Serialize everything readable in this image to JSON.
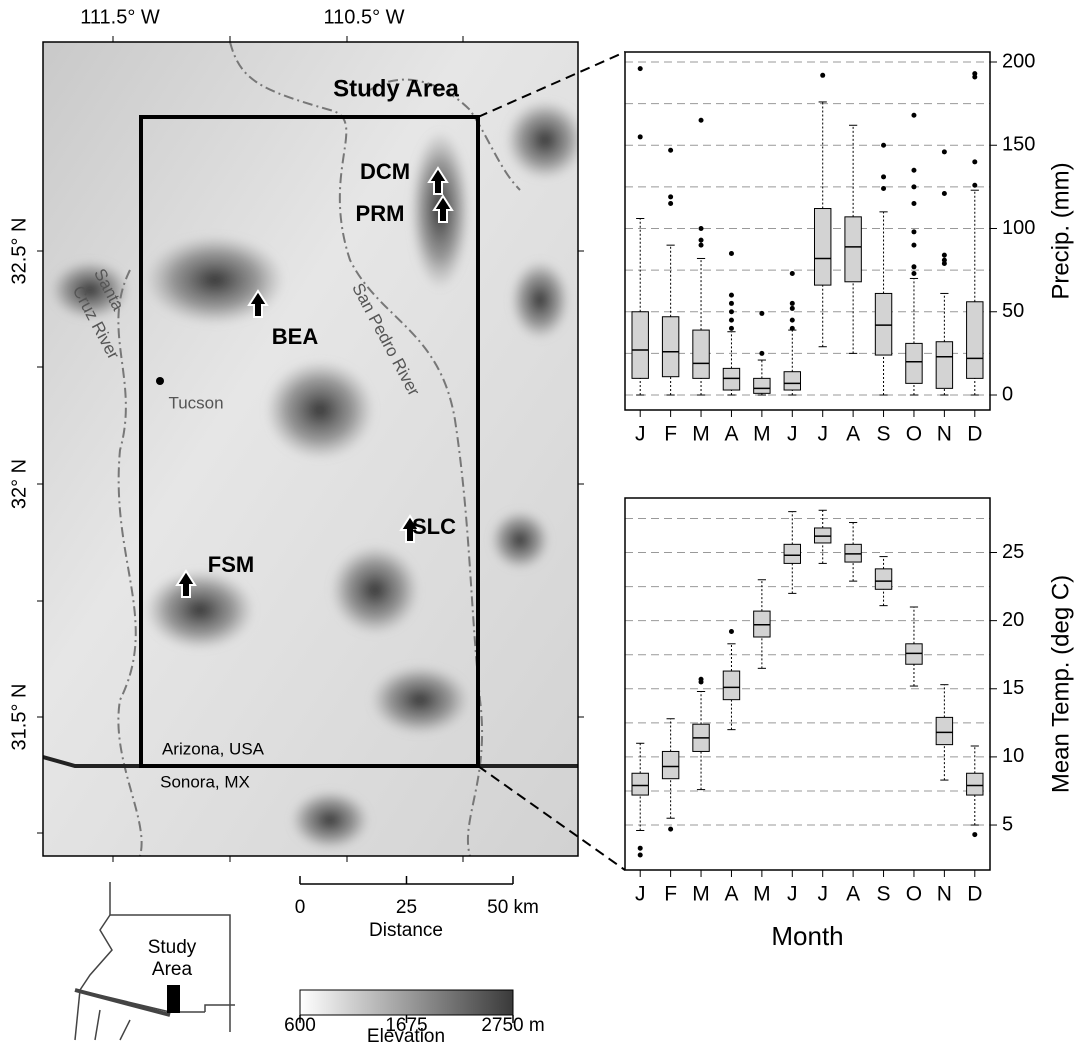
{
  "map": {
    "lon_labels": [
      "111.5° W",
      "110.5° W"
    ],
    "lat_labels": [
      "32.5° N",
      "32° N",
      "31.5° N"
    ],
    "study_area": "Study Area",
    "sites": [
      "DCM",
      "PRM",
      "BEA",
      "FSM",
      "SLC"
    ],
    "city": "Tucson",
    "rivers": [
      [
        "Santa",
        "Cruz River"
      ],
      [
        "San Pedro River"
      ]
    ],
    "countries": [
      "Arizona, USA",
      "Sonora, MX"
    ],
    "distance": {
      "ticks": [
        0,
        25,
        {
          "value": 50,
          "label": "50 km"
        }
      ],
      "title": "Distance"
    },
    "elevation": {
      "ticks": [
        600,
        1675,
        {
          "value": 2750,
          "label": "2750 m"
        }
      ],
      "title": "Elevation"
    },
    "inset_label": [
      "Study",
      "Area"
    ]
  },
  "chart_data": [
    {
      "type": "box",
      "y_label": "Precip. (mm)",
      "categories": [
        "J",
        "F",
        "M",
        "A",
        "M",
        "J",
        "J",
        "A",
        "S",
        "O",
        "N",
        "D"
      ],
      "whisker_low": [
        0,
        0,
        0,
        0,
        0,
        0,
        29,
        25,
        0,
        0,
        0,
        0
      ],
      "q1": [
        10,
        11,
        10,
        3,
        1,
        3,
        66,
        68,
        24,
        7,
        4,
        10
      ],
      "median": [
        27,
        26,
        19,
        10,
        4,
        7,
        82,
        89,
        42,
        20,
        23,
        22
      ],
      "q3": [
        50,
        47,
        39,
        16,
        10,
        14,
        112,
        107,
        61,
        31,
        32,
        56
      ],
      "whisker_high": [
        106,
        90,
        82,
        38,
        21,
        39,
        176,
        162,
        110,
        70,
        61,
        123
      ],
      "outliers": [
        [
          196,
          155
        ],
        [
          147,
          119,
          115
        ],
        [
          165,
          100,
          93,
          90
        ],
        [
          85,
          60,
          55,
          50,
          45,
          40
        ],
        [
          49,
          25
        ],
        [
          73,
          55,
          52,
          45,
          40
        ],
        [
          192
        ],
        [],
        [
          150,
          131,
          124
        ],
        [
          168,
          135,
          125,
          115,
          98,
          90,
          77,
          73
        ],
        [
          146,
          121,
          84,
          81,
          79
        ],
        [
          193,
          191,
          140,
          126
        ]
      ],
      "ylim": [
        -9,
        206
      ],
      "yticks": [
        0,
        50,
        100,
        150,
        200
      ],
      "ygrid": [
        0,
        25,
        50,
        75,
        100,
        125,
        150,
        175,
        200
      ],
      "box_color": "#d3d3d3"
    },
    {
      "type": "box",
      "y_label": "Mean Temp.  (deg C)",
      "x_label": "Month",
      "categories": [
        "J",
        "F",
        "M",
        "A",
        "M",
        "J",
        "J",
        "A",
        "S",
        "O",
        "N",
        "D"
      ],
      "whisker_low": [
        4.6,
        5.5,
        7.6,
        12,
        16.5,
        22,
        24.2,
        22.9,
        21.1,
        15.2,
        8.3,
        5
      ],
      "q1": [
        7.2,
        8.4,
        10.4,
        14.2,
        18.8,
        24.2,
        25.7,
        24.3,
        22.3,
        16.8,
        10.9,
        7.2
      ],
      "median": [
        7.9,
        9.3,
        11.4,
        15.1,
        19.7,
        24.8,
        26.2,
        24.9,
        22.9,
        17.6,
        11.8,
        7.9
      ],
      "q3": [
        8.8,
        10.4,
        12.4,
        16.3,
        20.7,
        25.6,
        26.8,
        25.6,
        23.8,
        18.3,
        12.9,
        8.8
      ],
      "whisker_high": [
        11,
        12.8,
        14.8,
        18.3,
        23,
        28,
        28.1,
        27.2,
        24.7,
        21,
        15.3,
        10.8
      ],
      "outliers": [
        [
          3.3,
          2.8
        ],
        [
          4.7
        ],
        [
          15.7,
          15.5
        ],
        [
          19.2
        ],
        [],
        [],
        [],
        [],
        [],
        [],
        [],
        [
          4.3
        ]
      ],
      "ylim": [
        1.7,
        29
      ],
      "yticks": [
        5,
        10,
        15,
        20,
        25
      ],
      "ygrid": [
        5,
        7.5,
        10,
        12.5,
        15,
        17.5,
        20,
        22.5,
        25,
        27.5
      ],
      "box_color": "#d3d3d3"
    }
  ]
}
